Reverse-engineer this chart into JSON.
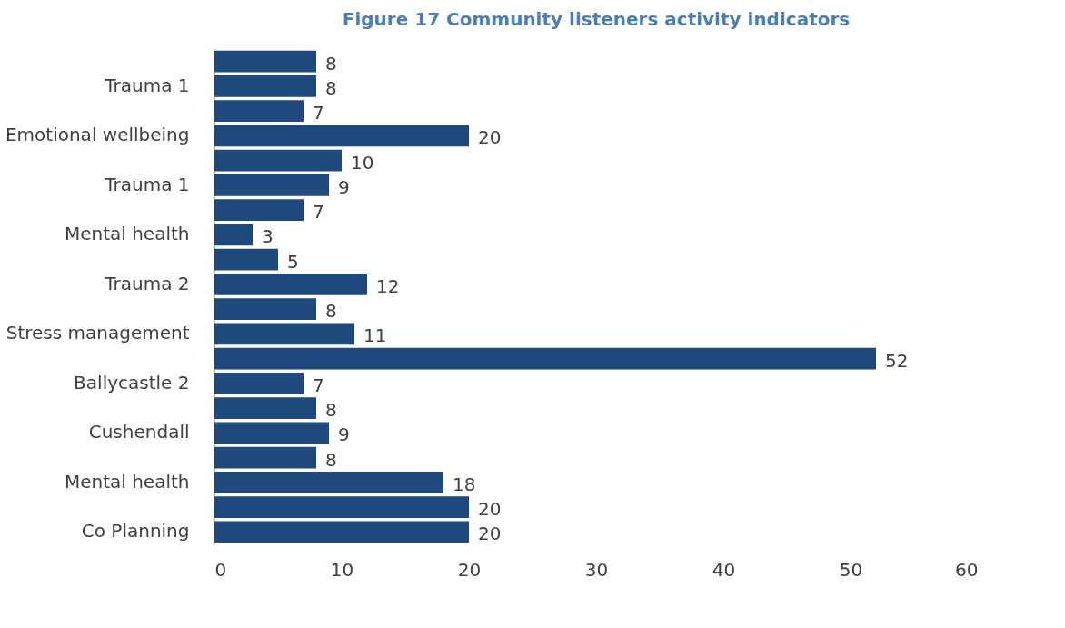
{
  "chart_data": {
    "type": "bar",
    "orientation": "horizontal",
    "title": "Figure 17 Community listeners activity indicators",
    "categories": [
      null,
      "Trauma 1",
      null,
      "Emotional wellbeing",
      null,
      "Trauma 1",
      null,
      "Mental health",
      null,
      "Trauma 2",
      null,
      "Stress management",
      null,
      "Ballycastle 2",
      null,
      "Cushendall",
      null,
      "Mental health",
      null,
      "Co Planning"
    ],
    "values": [
      8,
      8,
      7,
      20,
      10,
      9,
      7,
      3,
      5,
      12,
      8,
      11,
      52,
      7,
      8,
      9,
      8,
      18,
      20,
      20
    ],
    "color": "#1f497d",
    "xlim": [
      0,
      60
    ],
    "xticks": [
      0,
      10,
      20,
      30,
      40,
      50,
      60
    ],
    "grid": false,
    "data_labels": true
  }
}
